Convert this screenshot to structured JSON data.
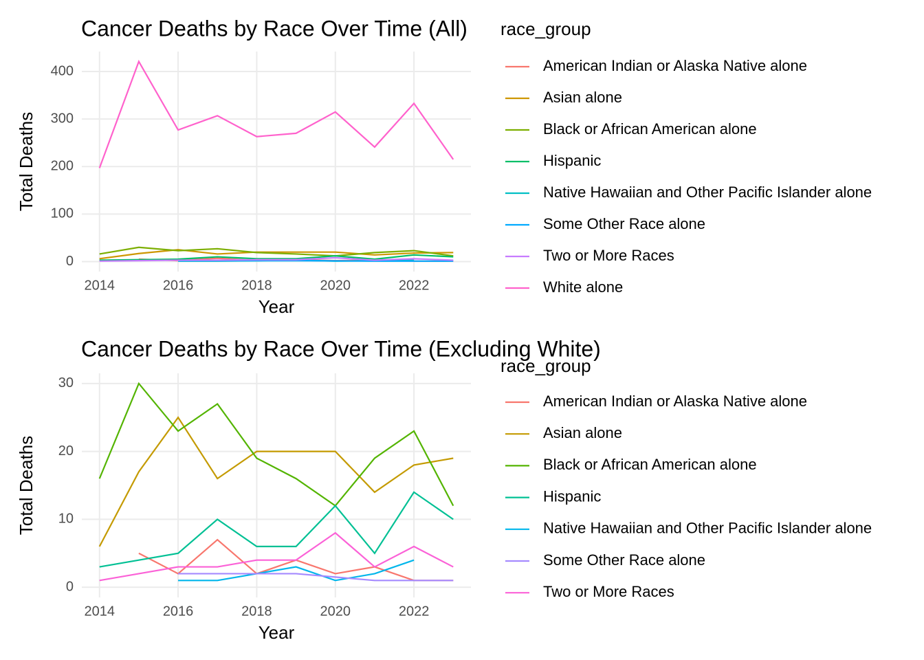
{
  "chart_data": [
    {
      "type": "line",
      "title": "Cancer Deaths by Race Over Time (All)",
      "x_label": "Year",
      "y_label": "Total Deaths",
      "legend_title": "race_group",
      "x": [
        2014,
        2015,
        2016,
        2017,
        2018,
        2019,
        2020,
        2021,
        2022,
        2023
      ],
      "xlim": [
        2013.55,
        2023.45
      ],
      "xticks": [
        2014,
        2016,
        2018,
        2020,
        2022
      ],
      "ylim": [
        -21,
        442
      ],
      "yticks": [
        0,
        100,
        200,
        300,
        400
      ],
      "grid": true,
      "legend": "right",
      "series": [
        {
          "name": "American Indian or Alaska Native alone",
          "color": "#F8766D",
          "values": [
            null,
            5,
            2,
            7,
            2,
            4,
            2,
            3,
            1,
            1
          ]
        },
        {
          "name": "Asian alone",
          "color": "#CD9600",
          "values": [
            6,
            17,
            25,
            16,
            20,
            20,
            20,
            14,
            18,
            19
          ]
        },
        {
          "name": "Black or African American alone",
          "color": "#7CAE00",
          "values": [
            16,
            30,
            23,
            27,
            19,
            16,
            12,
            19,
            23,
            12
          ]
        },
        {
          "name": "Hispanic",
          "color": "#00BE67",
          "values": [
            3,
            4,
            5,
            10,
            6,
            6,
            12,
            5,
            14,
            10
          ]
        },
        {
          "name": "Native Hawaiian and Other Pacific Islander alone",
          "color": "#00BFC4",
          "values": [
            null,
            null,
            1,
            1,
            2,
            3,
            1,
            2,
            4,
            null
          ]
        },
        {
          "name": "Some Other Race alone",
          "color": "#00A9FF",
          "values": [
            null,
            null,
            2,
            2,
            2,
            2,
            1.5,
            1,
            1,
            1
          ]
        },
        {
          "name": "Two or More Races",
          "color": "#C77CFF",
          "values": [
            1,
            2,
            3,
            3,
            4,
            4,
            8,
            3,
            6,
            3
          ]
        },
        {
          "name": "White alone",
          "color": "#FF61CC",
          "values": [
            197,
            421,
            277,
            307,
            263,
            270,
            315,
            241,
            333,
            215
          ]
        }
      ]
    },
    {
      "type": "line",
      "title": "Cancer Deaths by Race Over Time (Excluding White)",
      "x_label": "Year",
      "y_label": "Total Deaths",
      "legend_title": "race_group",
      "x": [
        2014,
        2015,
        2016,
        2017,
        2018,
        2019,
        2020,
        2021,
        2022,
        2023
      ],
      "xlim": [
        2013.55,
        2023.45
      ],
      "xticks": [
        2014,
        2016,
        2018,
        2020,
        2022
      ],
      "ylim": [
        -1.5,
        31.5
      ],
      "yticks": [
        0,
        10,
        20,
        30
      ],
      "grid": true,
      "legend": "right",
      "series": [
        {
          "name": "American Indian or Alaska Native alone",
          "color": "#F8766D",
          "values": [
            null,
            5,
            2,
            7,
            2,
            4,
            2,
            3,
            1,
            1
          ]
        },
        {
          "name": "Asian alone",
          "color": "#C49A00",
          "values": [
            6,
            17,
            25,
            16,
            20,
            20,
            20,
            14,
            18,
            19
          ]
        },
        {
          "name": "Black or African American alone",
          "color": "#53B400",
          "values": [
            16,
            30,
            23,
            27,
            19,
            16,
            12,
            19,
            23,
            12
          ]
        },
        {
          "name": "Hispanic",
          "color": "#00C094",
          "values": [
            3,
            4,
            5,
            10,
            6,
            6,
            12,
            5,
            14,
            10
          ]
        },
        {
          "name": "Native Hawaiian and Other Pacific Islander alone",
          "color": "#00B6EB",
          "values": [
            null,
            null,
            1,
            1,
            2,
            3,
            1,
            2,
            4,
            null
          ]
        },
        {
          "name": "Some Other Race alone",
          "color": "#A58AFF",
          "values": [
            null,
            null,
            2,
            2,
            2,
            2,
            1.5,
            1,
            1,
            1
          ]
        },
        {
          "name": "Two or More Races",
          "color": "#FB61D7",
          "values": [
            1,
            2,
            3,
            3,
            4,
            4,
            8,
            3,
            6,
            3
          ]
        }
      ]
    }
  ]
}
